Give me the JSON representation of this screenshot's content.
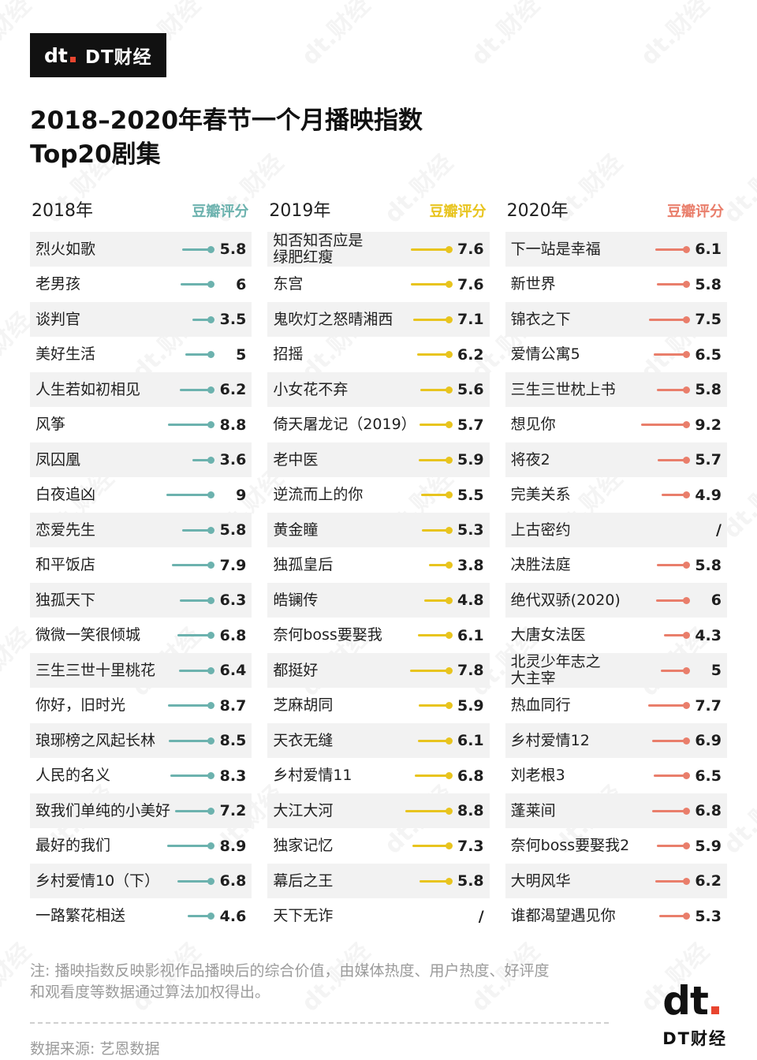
{
  "watermark": "dt.财经",
  "brand": {
    "red": "#e8452f",
    "black": "#111111"
  },
  "header": {
    "logo_mark": "dt",
    "logo_text": "DT财经",
    "title_line1": "2018–2020年春节一个月播映指数",
    "title_line2": "Top20剧集"
  },
  "chart_data": {
    "type": "bar",
    "variant": "lollipop",
    "orientation": "horizontal",
    "title": "2018–2020年春节一个月播映指数 Top20剧集",
    "score_label": "豆瓣评分",
    "value_range": [
      0,
      10
    ],
    "null_display": "/",
    "row_alt_color": "#f2f2f2",
    "series": [
      {
        "year": "2018年",
        "color": "#6cb2ae",
        "items": [
          {
            "label": "烈火如歌",
            "value": 5.8
          },
          {
            "label": "老男孩",
            "value": 6
          },
          {
            "label": "谈判官",
            "value": 3.5
          },
          {
            "label": "美好生活",
            "value": 5
          },
          {
            "label": "人生若如初相见",
            "value": 6.2
          },
          {
            "label": "风筝",
            "value": 8.8
          },
          {
            "label": "凤囚凰",
            "value": 3.6
          },
          {
            "label": "白夜追凶",
            "value": 9
          },
          {
            "label": "恋爱先生",
            "value": 5.8
          },
          {
            "label": "和平饭店",
            "value": 7.9
          },
          {
            "label": "独孤天下",
            "value": 6.3
          },
          {
            "label": "微微一笑很倾城",
            "value": 6.8
          },
          {
            "label": "三生三世十里桃花",
            "value": 6.4
          },
          {
            "label": "你好，旧时光",
            "value": 8.7
          },
          {
            "label": "琅琊榜之风起长林",
            "value": 8.5
          },
          {
            "label": "人民的名义",
            "value": 8.3
          },
          {
            "label": "致我们单纯的小美好",
            "value": 7.2
          },
          {
            "label": "最好的我们",
            "value": 8.9
          },
          {
            "label": "乡村爱情10（下）",
            "value": 6.8
          },
          {
            "label": "一路繁花相送",
            "value": 4.6
          }
        ]
      },
      {
        "year": "2019年",
        "color": "#e8c41e",
        "items": [
          {
            "label": "知否知否应是\n绿肥红瘦",
            "value": 7.6
          },
          {
            "label": "东宫",
            "value": 7.6
          },
          {
            "label": "鬼吹灯之怒晴湘西",
            "value": 7.1
          },
          {
            "label": "招摇",
            "value": 6.2
          },
          {
            "label": "小女花不弃",
            "value": 5.6
          },
          {
            "label": "倚天屠龙记（2019）",
            "value": 5.7
          },
          {
            "label": "老中医",
            "value": 5.9
          },
          {
            "label": "逆流而上的你",
            "value": 5.5
          },
          {
            "label": "黄金瞳",
            "value": 5.3
          },
          {
            "label": "独孤皇后",
            "value": 3.8
          },
          {
            "label": "皓镧传",
            "value": 4.8
          },
          {
            "label": "奈何boss要娶我",
            "value": 6.1
          },
          {
            "label": "都挺好",
            "value": 7.8
          },
          {
            "label": "芝麻胡同",
            "value": 5.9
          },
          {
            "label": "天衣无缝",
            "value": 6.1
          },
          {
            "label": "乡村爱情11",
            "value": 6.8
          },
          {
            "label": "大江大河",
            "value": 8.8
          },
          {
            "label": "独家记忆",
            "value": 7.3
          },
          {
            "label": "幕后之王",
            "value": 5.8
          },
          {
            "label": "天下无诈",
            "value": null
          }
        ]
      },
      {
        "year": "2020年",
        "color": "#e97e6b",
        "items": [
          {
            "label": "下一站是幸福",
            "value": 6.1
          },
          {
            "label": "新世界",
            "value": 5.8
          },
          {
            "label": "锦衣之下",
            "value": 7.5
          },
          {
            "label": "爱情公寓5",
            "value": 6.5
          },
          {
            "label": "三生三世枕上书",
            "value": 5.8
          },
          {
            "label": "想见你",
            "value": 9.2
          },
          {
            "label": "将夜2",
            "value": 5.7
          },
          {
            "label": "完美关系",
            "value": 4.9
          },
          {
            "label": "上古密约",
            "value": null
          },
          {
            "label": "决胜法庭",
            "value": 5.8
          },
          {
            "label": "绝代双骄(2020)",
            "value": 6
          },
          {
            "label": "大唐女法医",
            "value": 4.3
          },
          {
            "label": "北灵少年志之\n大主宰",
            "value": 5
          },
          {
            "label": "热血同行",
            "value": 7.7
          },
          {
            "label": "乡村爱情12",
            "value": 6.9
          },
          {
            "label": "刘老根3",
            "value": 6.5
          },
          {
            "label": "蓬莱间",
            "value": 6.8
          },
          {
            "label": "奈何boss要娶我2",
            "value": 5.9
          },
          {
            "label": "大明风华",
            "value": 6.2
          },
          {
            "label": "谁都渴望遇见你",
            "value": 5.3
          }
        ]
      }
    ]
  },
  "footer": {
    "note_line1": "注: 播映指数反映影视作品播映后的综合价值，由媒体热度、用户热度、好评度",
    "note_line2": "和观看度等数据通过算法加权得出。",
    "source": "数据来源: 艺恩数据",
    "logo_mark": "dt",
    "logo_text": "DT财经"
  }
}
